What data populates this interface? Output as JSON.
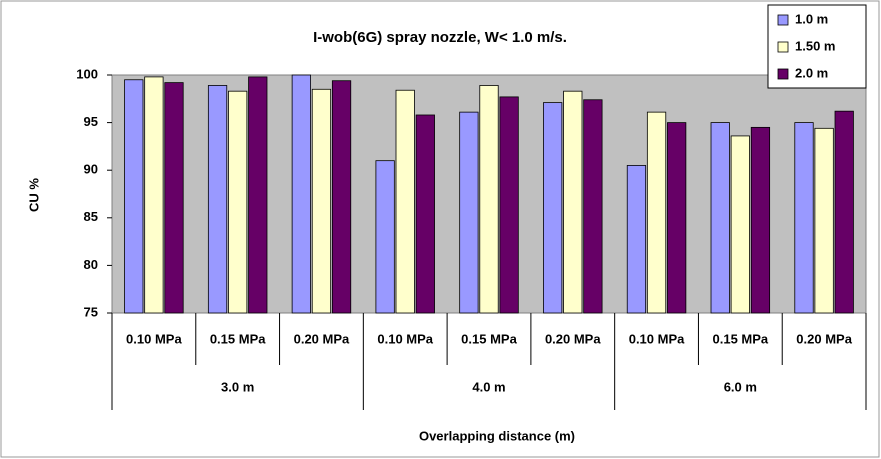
{
  "chart_data": {
    "type": "bar",
    "title": "I-wob(6G) spray nozzle, W< 1.0 m/s.",
    "x_label": "Overlapping distance (m)",
    "y_label": "CU %",
    "categories": [
      "0.10 MPa",
      "0.15 MPa",
      "0.20 MPa",
      "0.10 MPa",
      "0.15 MPa",
      "0.20 MPa",
      "0.10 MPa",
      "0.15 MPa",
      "0.20 MPa"
    ],
    "groups": [
      "3.0 m",
      "4.0 m",
      "6.0 m"
    ],
    "series": [
      {
        "name": "1.0 m",
        "color": "#9999ff",
        "values": [
          99.5,
          98.9,
          100,
          91,
          96.1,
          97.1,
          90.5,
          95,
          95
        ]
      },
      {
        "name": "1.50 m",
        "color": "#ffffcc",
        "values": [
          99.8,
          98.3,
          98.5,
          98.4,
          98.9,
          98.3,
          96.1,
          93.6,
          94.4
        ]
      },
      {
        "name": "2.0 m",
        "color": "#660066",
        "values": [
          99.2,
          99.8,
          99.4,
          95.8,
          97.7,
          97.4,
          95,
          94.5,
          96.2
        ]
      }
    ],
    "ylim": [
      75,
      100
    ],
    "yticks": [
      75,
      80,
      85,
      90,
      95,
      100
    ],
    "grid": false,
    "legend": "top-right",
    "plot_background": "#c0c0c0"
  }
}
